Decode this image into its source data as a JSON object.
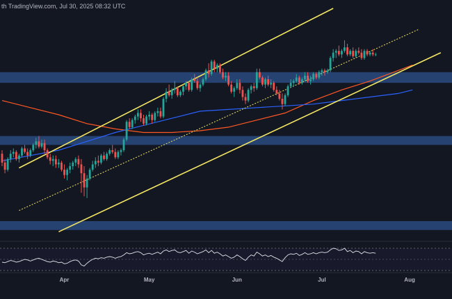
{
  "watermark": "th TradingView.com, Jul 30, 2025 08:32 UTC",
  "colors": {
    "background": "#131722",
    "up": "#26a69a",
    "down": "#ef5350",
    "channel": "#f5e663",
    "zone": "#2a4a7f",
    "ma_long": "#ff5722",
    "ma_short": "#2962ff",
    "rsi": "#e0e3eb"
  },
  "chart_data": {
    "type": "candlestick",
    "x_axis": {
      "ticks": [
        {
          "label": "Apr",
          "x": 22
        },
        {
          "label": "May",
          "x": 52
        },
        {
          "label": "Jun",
          "x": 83
        },
        {
          "label": "Jul",
          "x": 113
        },
        {
          "label": "Aug",
          "x": 144
        }
      ],
      "range": [
        0,
        149
      ]
    },
    "y_range": [
      0,
      100
    ],
    "candles": [
      [
        38,
        40,
        31,
        33
      ],
      [
        33,
        35,
        27,
        29
      ],
      [
        29,
        36,
        28,
        35
      ],
      [
        35,
        40,
        33,
        38
      ],
      [
        38,
        41,
        36,
        39
      ],
      [
        39,
        40,
        34,
        35
      ],
      [
        35,
        38,
        33,
        37
      ],
      [
        37,
        42,
        36,
        41
      ],
      [
        41,
        43,
        38,
        39
      ],
      [
        39,
        41,
        35,
        37
      ],
      [
        37,
        41,
        36,
        40
      ],
      [
        40,
        44,
        39,
        43
      ],
      [
        43,
        47,
        41,
        45
      ],
      [
        45,
        48,
        41,
        42
      ],
      [
        42,
        46,
        41,
        44
      ],
      [
        44,
        46,
        38,
        40
      ],
      [
        40,
        41,
        35,
        36
      ],
      [
        36,
        38,
        32,
        34
      ],
      [
        34,
        37,
        31,
        35
      ],
      [
        35,
        37,
        30,
        32
      ],
      [
        32,
        35,
        30,
        33
      ],
      [
        33,
        34,
        28,
        29
      ],
      [
        29,
        32,
        24,
        26
      ],
      [
        26,
        30,
        23,
        29
      ],
      [
        29,
        33,
        27,
        31
      ],
      [
        31,
        34,
        29,
        33
      ],
      [
        33,
        36,
        31,
        35
      ],
      [
        35,
        37,
        30,
        32
      ],
      [
        32,
        35,
        16,
        27
      ],
      [
        27,
        31,
        14,
        19
      ],
      [
        19,
        26,
        13,
        24
      ],
      [
        24,
        30,
        23,
        29
      ],
      [
        29,
        34,
        28,
        32
      ],
      [
        32,
        36,
        30,
        34
      ],
      [
        34,
        37,
        31,
        33
      ],
      [
        33,
        38,
        32,
        37
      ],
      [
        37,
        39,
        34,
        35
      ],
      [
        35,
        39,
        34,
        38
      ],
      [
        38,
        41,
        37,
        40
      ],
      [
        40,
        43,
        38,
        39
      ],
      [
        39,
        41,
        35,
        36
      ],
      [
        36,
        40,
        35,
        39
      ],
      [
        39,
        41,
        37,
        40
      ],
      [
        40,
        47,
        39,
        46
      ],
      [
        46,
        57,
        45,
        56
      ],
      [
        56,
        58,
        52,
        53
      ],
      [
        53,
        58,
        52,
        57
      ],
      [
        57,
        60,
        55,
        59
      ],
      [
        59,
        63,
        57,
        61
      ],
      [
        61,
        63,
        56,
        58
      ],
      [
        58,
        60,
        54,
        55
      ],
      [
        55,
        60,
        54,
        59
      ],
      [
        59,
        62,
        57,
        60
      ],
      [
        60,
        61,
        55,
        57
      ],
      [
        57,
        62,
        56,
        61
      ],
      [
        61,
        64,
        59,
        62
      ],
      [
        62,
        64,
        58,
        59
      ],
      [
        59,
        70,
        58,
        69
      ],
      [
        69,
        75,
        67,
        73
      ],
      [
        73,
        77,
        70,
        71
      ],
      [
        71,
        75,
        69,
        74
      ],
      [
        74,
        79,
        72,
        75
      ],
      [
        75,
        76,
        70,
        71
      ],
      [
        71,
        74,
        70,
        73
      ],
      [
        73,
        77,
        71,
        76
      ],
      [
        76,
        79,
        74,
        78
      ],
      [
        78,
        79,
        73,
        74
      ],
      [
        74,
        81,
        73,
        80
      ],
      [
        80,
        83,
        78,
        79
      ],
      [
        79,
        81,
        74,
        75
      ],
      [
        75,
        78,
        73,
        77
      ],
      [
        77,
        81,
        76,
        80
      ],
      [
        80,
        86,
        79,
        85
      ],
      [
        85,
        89,
        81,
        83
      ],
      [
        83,
        91,
        82,
        90
      ],
      [
        90,
        91,
        84,
        86
      ],
      [
        86,
        89,
        84,
        88
      ],
      [
        88,
        89,
        83,
        84
      ],
      [
        84,
        86,
        80,
        81
      ],
      [
        81,
        84,
        79,
        82
      ],
      [
        82,
        84,
        76,
        77
      ],
      [
        77,
        79,
        72,
        73
      ],
      [
        73,
        76,
        70,
        75
      ],
      [
        75,
        80,
        74,
        78
      ],
      [
        78,
        80,
        72,
        74
      ],
      [
        74,
        76,
        68,
        70
      ],
      [
        70,
        72,
        66,
        68
      ],
      [
        68,
        75,
        67,
        74
      ],
      [
        74,
        77,
        72,
        76
      ],
      [
        76,
        78,
        73,
        75
      ],
      [
        75,
        86,
        74,
        84
      ],
      [
        84,
        86,
        80,
        81
      ],
      [
        81,
        82,
        76,
        77
      ],
      [
        77,
        81,
        75,
        80
      ],
      [
        80,
        82,
        76,
        77
      ],
      [
        77,
        80,
        75,
        78
      ],
      [
        78,
        79,
        73,
        74
      ],
      [
        74,
        76,
        71,
        72
      ],
      [
        72,
        74,
        68,
        69
      ],
      [
        69,
        72,
        63,
        66
      ],
      [
        66,
        72,
        65,
        71
      ],
      [
        71,
        77,
        70,
        76
      ],
      [
        76,
        80,
        75,
        78
      ],
      [
        78,
        80,
        76,
        79
      ],
      [
        79,
        83,
        78,
        81
      ],
      [
        81,
        82,
        77,
        78
      ],
      [
        78,
        81,
        77,
        80
      ],
      [
        80,
        84,
        79,
        82
      ],
      [
        82,
        84,
        78,
        79
      ],
      [
        79,
        82,
        77,
        80
      ],
      [
        80,
        84,
        79,
        83
      ],
      [
        83,
        84,
        80,
        81
      ],
      [
        81,
        85,
        80,
        84
      ],
      [
        84,
        86,
        82,
        85
      ],
      [
        85,
        86,
        82,
        84
      ],
      [
        84,
        86,
        83,
        85
      ],
      [
        85,
        93,
        84,
        92
      ],
      [
        92,
        97,
        90,
        95
      ],
      [
        95,
        97,
        92,
        96
      ],
      [
        96,
        99,
        93,
        94
      ],
      [
        94,
        97,
        92,
        96
      ],
      [
        96,
        102,
        95,
        98
      ],
      [
        98,
        100,
        93,
        94
      ],
      [
        94,
        97,
        93,
        96
      ],
      [
        96,
        98,
        92,
        93
      ],
      [
        93,
        97,
        92,
        96
      ],
      [
        96,
        98,
        94,
        95
      ],
      [
        95,
        97,
        91,
        92
      ],
      [
        92,
        97,
        91,
        96
      ],
      [
        96,
        97,
        93,
        94
      ],
      [
        94,
        96,
        93,
        95
      ],
      [
        95,
        97,
        93,
        94
      ],
      [
        94,
        95,
        93,
        94
      ]
    ],
    "ma_long": [
      [
        0,
        68
      ],
      [
        10,
        64
      ],
      [
        20,
        60
      ],
      [
        30,
        55
      ],
      [
        40,
        52
      ],
      [
        50,
        50
      ],
      [
        60,
        50
      ],
      [
        70,
        51
      ],
      [
        80,
        53
      ],
      [
        90,
        57
      ],
      [
        100,
        61
      ],
      [
        110,
        68
      ],
      [
        120,
        74
      ],
      [
        130,
        79
      ],
      [
        140,
        85
      ],
      [
        145,
        88
      ]
    ],
    "ma_short": [
      [
        0,
        34
      ],
      [
        10,
        37
      ],
      [
        20,
        40
      ],
      [
        30,
        45
      ],
      [
        40,
        50
      ],
      [
        50,
        54
      ],
      [
        60,
        58
      ],
      [
        70,
        62
      ],
      [
        80,
        63
      ],
      [
        90,
        64
      ],
      [
        100,
        65
      ],
      [
        110,
        66
      ],
      [
        120,
        68
      ],
      [
        130,
        70
      ],
      [
        140,
        72
      ],
      [
        145,
        74
      ]
    ],
    "channel_upper": [
      [
        6,
        30
      ],
      [
        117,
        120
      ]
    ],
    "channel_mid": [
      [
        6,
        6
      ],
      [
        147,
        108
      ]
    ],
    "channel_lower": [
      [
        20,
        -6
      ],
      [
        155,
        95
      ]
    ],
    "zones": [
      [
        78,
        84
      ],
      [
        43,
        48
      ],
      [
        -5,
        0
      ]
    ],
    "rsi": [
      45,
      44,
      46,
      48,
      47,
      45,
      46,
      48,
      50,
      49,
      47,
      49,
      51,
      52,
      50,
      48,
      46,
      45,
      47,
      46,
      44,
      45,
      42,
      43,
      46,
      48,
      49,
      47,
      40,
      38,
      43,
      47,
      50,
      52,
      51,
      53,
      52,
      54,
      55,
      54,
      52,
      54,
      55,
      58,
      62,
      60,
      61,
      63,
      64,
      62,
      58,
      60,
      61,
      59,
      61,
      63,
      60,
      65,
      67,
      64,
      66,
      67,
      63,
      62,
      64,
      66,
      61,
      65,
      63,
      60,
      62,
      64,
      67,
      62,
      66,
      61,
      63,
      60,
      56,
      58,
      55,
      52,
      54,
      58,
      55,
      51,
      48,
      54,
      58,
      56,
      63,
      60,
      56,
      58,
      55,
      57,
      54,
      52,
      49,
      46,
      53,
      58,
      60,
      59,
      61,
      57,
      59,
      62,
      59,
      60,
      62,
      60,
      62,
      63,
      62,
      63,
      67,
      70,
      69,
      66,
      67,
      70,
      64,
      66,
      62,
      65,
      64,
      60,
      64,
      62,
      61,
      62,
      61
    ]
  }
}
